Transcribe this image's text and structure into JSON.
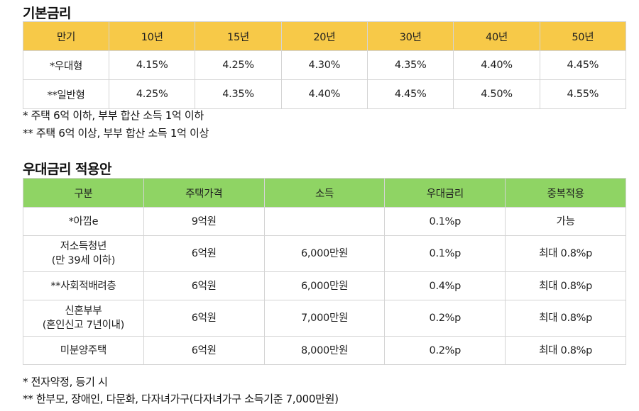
{
  "base": {
    "title": "기본금리",
    "headers": [
      "만기",
      "10년",
      "15년",
      "20년",
      "30년",
      "40년",
      "50년"
    ],
    "rows": [
      [
        "*우대형",
        "4.15%",
        "4.25%",
        "4.30%",
        "4.35%",
        "4.40%",
        "4.45%"
      ],
      [
        "**일반형",
        "4.25%",
        "4.35%",
        "4.40%",
        "4.45%",
        "4.50%",
        "4.55%"
      ]
    ],
    "notes": [
      "* 주택 6억 이하, 부부 합산 소득 1억 이하",
      "** 주택 6억 이상, 부부 합산 소득 1억 이상"
    ],
    "header_color": "#f7c948"
  },
  "preferential": {
    "title": "우대금리 적용안",
    "headers": [
      "구분",
      "주택가격",
      "소득",
      "우대금리",
      "중복적용"
    ],
    "rows": [
      {
        "category": [
          "*아낌e"
        ],
        "price": "9억원",
        "income": "",
        "rate": "0.1%p",
        "overlap": "가능"
      },
      {
        "category": [
          "저소득청년",
          "(만 39세 이하)"
        ],
        "price": "6억원",
        "income": "6,000만원",
        "rate": "0.1%p",
        "overlap": "최대 0.8%p"
      },
      {
        "category": [
          "**사회적배려층"
        ],
        "price": "6억원",
        "income": "6,000만원",
        "rate": "0.4%p",
        "overlap": "최대 0.8%p"
      },
      {
        "category": [
          "신혼부부",
          "(혼인신고 7년이내)"
        ],
        "price": "6억원",
        "income": "7,000만원",
        "rate": "0.2%p",
        "overlap": "최대 0.8%p"
      },
      {
        "category": [
          "미분양주택"
        ],
        "price": "6억원",
        "income": "8,000만원",
        "rate": "0.2%p",
        "overlap": "최대 0.8%p"
      }
    ],
    "notes": [
      "* 전자약정, 등기 시",
      "** 한부모, 장애인, 다문화, 다자녀가구(다자녀가구 소득기준 7,000만원)"
    ],
    "header_color": "#8fd464"
  }
}
